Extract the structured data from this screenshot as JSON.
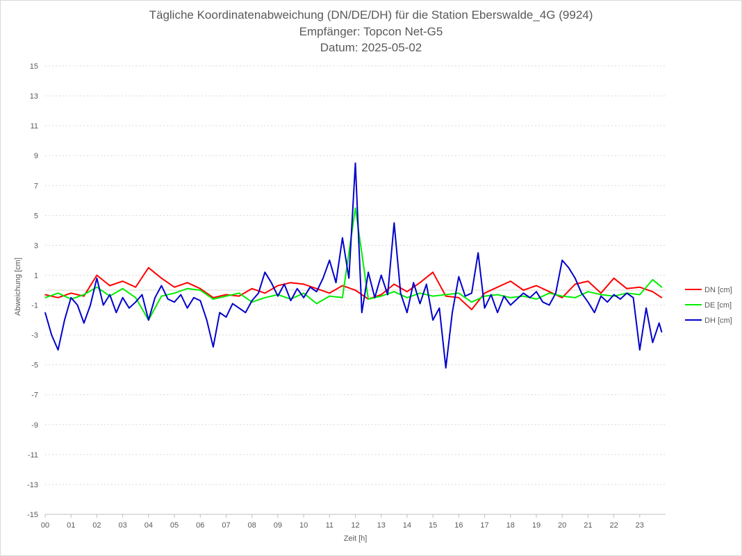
{
  "title_lines": [
    "Tägliche Koordinatenabweichung (DN/DE/DH) für die Station Eberswalde_4G (9924)",
    "Empfänger: Topcon Net-G5",
    "Datum: 2025-05-02"
  ],
  "chart_data": {
    "type": "line",
    "title": "Tägliche Koordinatenabweichung (DN/DE/DH) für die Station Eberswalde_4G (9924)",
    "subtitle": [
      "Empfänger: Topcon Net-G5",
      "Datum: 2025-05-02"
    ],
    "xlabel": "Zeit [h]",
    "ylabel": "Abweichung [cm]",
    "ylim": [
      -15,
      15
    ],
    "xlim": [
      0,
      24
    ],
    "y_ticks": [
      "15",
      "13",
      "11",
      "9",
      "7",
      "5",
      "3",
      "1",
      "-1",
      "-3",
      "-5",
      "-7",
      "-9",
      "-11",
      "-13",
      "-15"
    ],
    "x_ticks": [
      "00",
      "01",
      "02",
      "03",
      "04",
      "05",
      "06",
      "07",
      "08",
      "09",
      "10",
      "11",
      "12",
      "13",
      "14",
      "15",
      "16",
      "17",
      "18",
      "19",
      "20",
      "21",
      "22",
      "23"
    ],
    "grid": "horizontal dotted",
    "legend_position": "right",
    "series": [
      {
        "name": "DN [cm]",
        "color": "#ff0000",
        "x": [
          0,
          0.5,
          1,
          1.5,
          2,
          2.5,
          3,
          3.5,
          4,
          4.5,
          5,
          5.5,
          6,
          6.5,
          7,
          7.5,
          8,
          8.5,
          9,
          9.5,
          10,
          10.5,
          11,
          11.5,
          12,
          12.5,
          13,
          13.5,
          14,
          14.5,
          15,
          15.5,
          16,
          16.5,
          17,
          17.5,
          18,
          18.5,
          19,
          19.5,
          20,
          20.5,
          21,
          21.5,
          22,
          22.5,
          23,
          23.5,
          23.85
        ],
        "values": [
          -0.3,
          -0.5,
          -0.2,
          -0.4,
          1.0,
          0.3,
          0.6,
          0.2,
          1.5,
          0.8,
          0.2,
          0.5,
          0.1,
          -0.5,
          -0.3,
          -0.4,
          0.1,
          -0.2,
          0.3,
          0.5,
          0.4,
          0.1,
          -0.2,
          0.3,
          0.0,
          -0.6,
          -0.3,
          0.4,
          -0.1,
          0.5,
          1.2,
          -0.4,
          -0.5,
          -1.3,
          -0.2,
          0.2,
          0.6,
          0.0,
          0.3,
          -0.1,
          -0.5,
          0.4,
          0.6,
          -0.2,
          0.8,
          0.1,
          0.2,
          -0.1,
          -0.5
        ]
      },
      {
        "name": "DE [cm]",
        "color": "#00ee00",
        "x": [
          0,
          0.5,
          1,
          1.5,
          2,
          2.5,
          3,
          3.5,
          4,
          4.5,
          5,
          5.5,
          6,
          6.5,
          7,
          7.5,
          8,
          8.5,
          9,
          9.5,
          10,
          10.5,
          11,
          11.5,
          12,
          12.5,
          13,
          13.5,
          14,
          14.5,
          15,
          15.5,
          16,
          16.5,
          17,
          17.5,
          18,
          18.5,
          19,
          19.5,
          20,
          20.5,
          21,
          21.5,
          22,
          22.5,
          23,
          23.5,
          23.85
        ],
        "values": [
          -0.5,
          -0.2,
          -0.6,
          -0.3,
          0.2,
          -0.4,
          0.1,
          -0.5,
          -2.0,
          -0.4,
          -0.2,
          0.1,
          0.0,
          -0.6,
          -0.4,
          -0.2,
          -0.8,
          -0.5,
          -0.3,
          -0.6,
          -0.2,
          -0.9,
          -0.4,
          -0.5,
          5.5,
          -0.6,
          -0.4,
          -0.1,
          -0.5,
          -0.2,
          -0.4,
          -0.3,
          -0.2,
          -0.8,
          -0.4,
          -0.3,
          -0.5,
          -0.4,
          -0.6,
          -0.2,
          -0.4,
          -0.5,
          -0.1,
          -0.3,
          -0.4,
          -0.2,
          -0.3,
          0.7,
          0.2
        ]
      },
      {
        "name": "DH [cm]",
        "color": "#0000cc",
        "x": [
          0,
          0.25,
          0.5,
          0.75,
          1,
          1.25,
          1.5,
          1.75,
          2,
          2.25,
          2.5,
          2.75,
          3,
          3.25,
          3.5,
          3.75,
          4,
          4.25,
          4.5,
          4.75,
          5,
          5.25,
          5.5,
          5.75,
          6,
          6.25,
          6.5,
          6.75,
          7,
          7.25,
          7.5,
          7.75,
          8,
          8.25,
          8.5,
          8.75,
          9,
          9.25,
          9.5,
          9.75,
          10,
          10.25,
          10.5,
          10.75,
          11,
          11.25,
          11.5,
          11.75,
          12,
          12.25,
          12.5,
          12.75,
          13,
          13.25,
          13.5,
          13.75,
          14,
          14.25,
          14.5,
          14.75,
          15,
          15.25,
          15.5,
          15.75,
          16,
          16.25,
          16.5,
          16.75,
          17,
          17.25,
          17.5,
          17.75,
          18,
          18.25,
          18.5,
          18.75,
          19,
          19.25,
          19.5,
          19.75,
          20,
          20.25,
          20.5,
          20.75,
          21,
          21.25,
          21.5,
          21.75,
          22,
          22.25,
          22.5,
          22.75,
          23,
          23.25,
          23.5,
          23.75,
          23.85
        ],
        "values": [
          -1.5,
          -3.0,
          -4.0,
          -2.0,
          -0.5,
          -1.0,
          -2.2,
          -1.0,
          0.8,
          -1.0,
          -0.3,
          -1.5,
          -0.5,
          -1.2,
          -0.8,
          -0.3,
          -2.0,
          -0.5,
          0.3,
          -0.6,
          -0.8,
          -0.3,
          -1.2,
          -0.5,
          -0.7,
          -2.0,
          -3.8,
          -1.5,
          -1.8,
          -0.9,
          -1.2,
          -1.5,
          -0.7,
          -0.2,
          1.2,
          0.5,
          -0.4,
          0.4,
          -0.7,
          0.1,
          -0.5,
          0.2,
          -0.1,
          0.8,
          2.0,
          0.5,
          3.5,
          0.8,
          8.5,
          -1.5,
          1.2,
          -0.5,
          1.0,
          -0.3,
          4.5,
          -0.2,
          -1.5,
          0.5,
          -0.9,
          0.4,
          -2.0,
          -1.2,
          -5.2,
          -1.5,
          0.9,
          -0.4,
          -0.2,
          2.5,
          -1.2,
          -0.3,
          -1.5,
          -0.4,
          -1.0,
          -0.6,
          -0.2,
          -0.5,
          -0.1,
          -0.8,
          -1.0,
          -0.2,
          2.0,
          1.5,
          0.8,
          -0.2,
          -0.8,
          -1.5,
          -0.4,
          -0.8,
          -0.3,
          -0.6,
          -0.2,
          -0.5,
          -4.0,
          -1.2,
          -3.5,
          -2.2,
          -2.8
        ]
      }
    ]
  }
}
